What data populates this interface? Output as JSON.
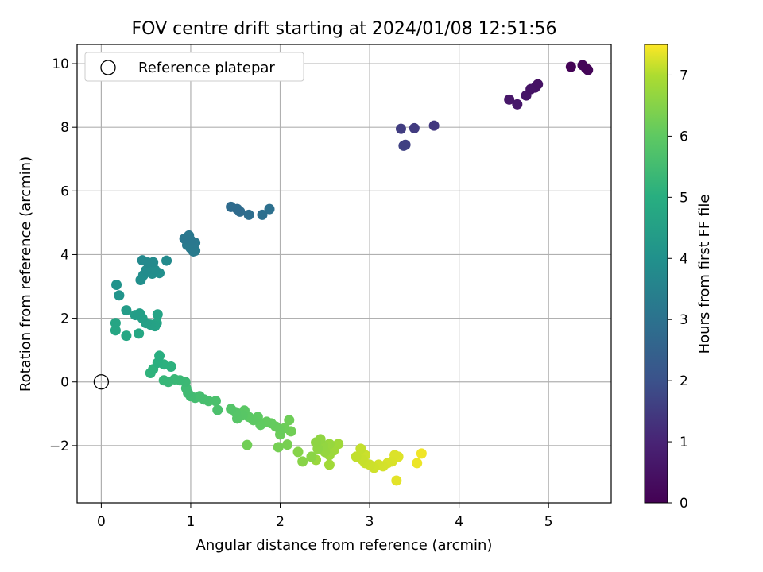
{
  "chart_data": {
    "type": "scatter",
    "title": "FOV centre drift starting at 2024/01/08 12:51:56",
    "xlabel": "Angular distance from reference (arcmin)",
    "ylabel": "Rotation from reference (arcmin)",
    "xlim": [
      -0.27,
      5.7
    ],
    "ylim": [
      -3.8,
      10.6
    ],
    "xticks": [
      0,
      1,
      2,
      3,
      4,
      5
    ],
    "yticks": [
      -2,
      0,
      2,
      4,
      6,
      8,
      10
    ],
    "grid": true,
    "legend": {
      "location": "upper-left",
      "entries": [
        "Reference platepar"
      ]
    },
    "reference_point": {
      "x": 0,
      "y": 0,
      "marker": "open-circle"
    },
    "colorbar": {
      "label": "Hours from first FF file",
      "colormap": "viridis",
      "range": [
        0,
        7.5
      ],
      "ticks": [
        0,
        1,
        2,
        3,
        4,
        5,
        6,
        7
      ]
    },
    "points": [
      {
        "x": 5.25,
        "y": 9.9,
        "h": 0.05
      },
      {
        "x": 5.38,
        "y": 9.95,
        "h": 0.1
      },
      {
        "x": 5.42,
        "y": 9.85,
        "h": 0.12
      },
      {
        "x": 5.44,
        "y": 9.8,
        "h": 0.15
      },
      {
        "x": 4.88,
        "y": 9.35,
        "h": 0.45
      },
      {
        "x": 4.85,
        "y": 9.25,
        "h": 0.5
      },
      {
        "x": 4.8,
        "y": 9.2,
        "h": 0.52
      },
      {
        "x": 4.75,
        "y": 9.0,
        "h": 0.55
      },
      {
        "x": 4.56,
        "y": 8.87,
        "h": 0.6
      },
      {
        "x": 4.65,
        "y": 8.72,
        "h": 0.62
      },
      {
        "x": 3.72,
        "y": 8.05,
        "h": 1.35
      },
      {
        "x": 3.5,
        "y": 7.97,
        "h": 1.4
      },
      {
        "x": 3.35,
        "y": 7.95,
        "h": 1.45
      },
      {
        "x": 3.4,
        "y": 7.45,
        "h": 1.5
      },
      {
        "x": 3.38,
        "y": 7.42,
        "h": 1.55
      },
      {
        "x": 1.45,
        "y": 5.5,
        "h": 2.6
      },
      {
        "x": 1.52,
        "y": 5.43,
        "h": 2.62
      },
      {
        "x": 1.55,
        "y": 5.35,
        "h": 2.65
      },
      {
        "x": 1.65,
        "y": 5.25,
        "h": 2.7
      },
      {
        "x": 1.8,
        "y": 5.25,
        "h": 2.72
      },
      {
        "x": 1.88,
        "y": 5.43,
        "h": 2.75
      },
      {
        "x": 0.93,
        "y": 4.5,
        "h": 2.95
      },
      {
        "x": 0.98,
        "y": 4.6,
        "h": 3.0
      },
      {
        "x": 1.0,
        "y": 4.45,
        "h": 3.0
      },
      {
        "x": 1.05,
        "y": 4.37,
        "h": 3.02
      },
      {
        "x": 0.96,
        "y": 4.3,
        "h": 3.05
      },
      {
        "x": 1.0,
        "y": 4.2,
        "h": 3.05
      },
      {
        "x": 1.03,
        "y": 4.1,
        "h": 3.08
      },
      {
        "x": 1.05,
        "y": 4.12,
        "h": 3.1
      },
      {
        "x": 0.46,
        "y": 3.82,
        "h": 3.5
      },
      {
        "x": 0.52,
        "y": 3.75,
        "h": 3.52
      },
      {
        "x": 0.58,
        "y": 3.76,
        "h": 3.55
      },
      {
        "x": 0.73,
        "y": 3.81,
        "h": 3.55
      },
      {
        "x": 0.5,
        "y": 3.5,
        "h": 3.6
      },
      {
        "x": 0.55,
        "y": 3.55,
        "h": 3.62
      },
      {
        "x": 0.6,
        "y": 3.52,
        "h": 3.63
      },
      {
        "x": 0.47,
        "y": 3.35,
        "h": 3.65
      },
      {
        "x": 0.57,
        "y": 3.4,
        "h": 3.66
      },
      {
        "x": 0.65,
        "y": 3.42,
        "h": 3.68
      },
      {
        "x": 0.44,
        "y": 3.2,
        "h": 3.7
      },
      {
        "x": 0.17,
        "y": 3.05,
        "h": 3.8
      },
      {
        "x": 0.2,
        "y": 2.72,
        "h": 3.85
      },
      {
        "x": 0.28,
        "y": 2.25,
        "h": 4.1
      },
      {
        "x": 0.38,
        "y": 2.1,
        "h": 4.15
      },
      {
        "x": 0.43,
        "y": 2.15,
        "h": 4.18
      },
      {
        "x": 0.46,
        "y": 2.0,
        "h": 4.2
      },
      {
        "x": 0.5,
        "y": 1.85,
        "h": 4.25
      },
      {
        "x": 0.55,
        "y": 1.8,
        "h": 4.28
      },
      {
        "x": 0.6,
        "y": 1.75,
        "h": 4.3
      },
      {
        "x": 0.63,
        "y": 2.12,
        "h": 4.32
      },
      {
        "x": 0.62,
        "y": 1.85,
        "h": 4.35
      },
      {
        "x": 0.16,
        "y": 1.85,
        "h": 4.4
      },
      {
        "x": 0.16,
        "y": 1.62,
        "h": 4.42
      },
      {
        "x": 0.28,
        "y": 1.45,
        "h": 4.45
      },
      {
        "x": 0.42,
        "y": 1.52,
        "h": 4.45
      },
      {
        "x": 0.65,
        "y": 0.82,
        "h": 4.7
      },
      {
        "x": 0.63,
        "y": 0.6,
        "h": 4.72
      },
      {
        "x": 0.7,
        "y": 0.55,
        "h": 4.75
      },
      {
        "x": 0.78,
        "y": 0.48,
        "h": 4.78
      },
      {
        "x": 0.58,
        "y": 0.4,
        "h": 4.8
      },
      {
        "x": 0.55,
        "y": 0.28,
        "h": 4.82
      },
      {
        "x": 0.7,
        "y": 0.05,
        "h": 4.95
      },
      {
        "x": 0.75,
        "y": 0.0,
        "h": 4.98
      },
      {
        "x": 0.82,
        "y": 0.08,
        "h": 5.0
      },
      {
        "x": 0.88,
        "y": 0.05,
        "h": 5.02
      },
      {
        "x": 0.94,
        "y": 0.0,
        "h": 5.05
      },
      {
        "x": 0.95,
        "y": -0.2,
        "h": 5.1
      },
      {
        "x": 0.97,
        "y": -0.35,
        "h": 5.12
      },
      {
        "x": 1.0,
        "y": -0.45,
        "h": 5.15
      },
      {
        "x": 1.05,
        "y": -0.5,
        "h": 5.2
      },
      {
        "x": 1.1,
        "y": -0.45,
        "h": 5.22
      },
      {
        "x": 1.15,
        "y": -0.55,
        "h": 5.25
      },
      {
        "x": 1.2,
        "y": -0.6,
        "h": 5.28
      },
      {
        "x": 1.28,
        "y": -0.6,
        "h": 5.3
      },
      {
        "x": 1.3,
        "y": -0.88,
        "h": 5.32
      },
      {
        "x": 1.45,
        "y": -0.85,
        "h": 5.45
      },
      {
        "x": 1.5,
        "y": -0.95,
        "h": 5.48
      },
      {
        "x": 1.52,
        "y": -1.15,
        "h": 5.5
      },
      {
        "x": 1.58,
        "y": -1.05,
        "h": 5.52
      },
      {
        "x": 1.6,
        "y": -0.9,
        "h": 5.55
      },
      {
        "x": 1.65,
        "y": -1.1,
        "h": 5.58
      },
      {
        "x": 1.7,
        "y": -1.2,
        "h": 5.6
      },
      {
        "x": 1.75,
        "y": -1.1,
        "h": 5.62
      },
      {
        "x": 1.78,
        "y": -1.35,
        "h": 5.65
      },
      {
        "x": 1.85,
        "y": -1.25,
        "h": 5.68
      },
      {
        "x": 1.9,
        "y": -1.3,
        "h": 5.7
      },
      {
        "x": 1.95,
        "y": -1.4,
        "h": 5.72
      },
      {
        "x": 2.0,
        "y": -1.5,
        "h": 5.75
      },
      {
        "x": 2.0,
        "y": -1.65,
        "h": 5.78
      },
      {
        "x": 2.05,
        "y": -1.45,
        "h": 5.8
      },
      {
        "x": 2.1,
        "y": -1.2,
        "h": 5.82
      },
      {
        "x": 2.12,
        "y": -1.55,
        "h": 5.85
      },
      {
        "x": 1.63,
        "y": -1.98,
        "h": 5.85
      },
      {
        "x": 1.98,
        "y": -2.05,
        "h": 5.9
      },
      {
        "x": 2.08,
        "y": -1.97,
        "h": 5.92
      },
      {
        "x": 2.2,
        "y": -2.2,
        "h": 6.1
      },
      {
        "x": 2.25,
        "y": -2.5,
        "h": 6.12
      },
      {
        "x": 2.35,
        "y": -2.35,
        "h": 6.15
      },
      {
        "x": 2.4,
        "y": -1.9,
        "h": 6.18
      },
      {
        "x": 2.42,
        "y": -2.1,
        "h": 6.2
      },
      {
        "x": 2.45,
        "y": -1.8,
        "h": 6.22
      },
      {
        "x": 2.48,
        "y": -2.0,
        "h": 6.25
      },
      {
        "x": 2.5,
        "y": -2.2,
        "h": 6.28
      },
      {
        "x": 2.55,
        "y": -1.95,
        "h": 6.3
      },
      {
        "x": 2.4,
        "y": -2.45,
        "h": 6.32
      },
      {
        "x": 2.55,
        "y": -2.3,
        "h": 6.35
      },
      {
        "x": 2.6,
        "y": -2.15,
        "h": 6.38
      },
      {
        "x": 2.65,
        "y": -1.95,
        "h": 6.4
      },
      {
        "x": 2.55,
        "y": -2.6,
        "h": 6.42
      },
      {
        "x": 2.85,
        "y": -2.35,
        "h": 6.8
      },
      {
        "x": 2.9,
        "y": -2.1,
        "h": 6.82
      },
      {
        "x": 2.92,
        "y": -2.45,
        "h": 6.85
      },
      {
        "x": 2.95,
        "y": -2.55,
        "h": 6.88
      },
      {
        "x": 2.95,
        "y": -2.3,
        "h": 6.9
      },
      {
        "x": 3.0,
        "y": -2.6,
        "h": 6.92
      },
      {
        "x": 3.05,
        "y": -2.7,
        "h": 6.95
      },
      {
        "x": 3.1,
        "y": -2.6,
        "h": 7.0
      },
      {
        "x": 3.15,
        "y": -2.65,
        "h": 7.02
      },
      {
        "x": 3.2,
        "y": -2.55,
        "h": 7.05
      },
      {
        "x": 3.25,
        "y": -2.5,
        "h": 7.08
      },
      {
        "x": 3.28,
        "y": -2.3,
        "h": 7.1
      },
      {
        "x": 3.32,
        "y": -2.35,
        "h": 7.12
      },
      {
        "x": 3.3,
        "y": -3.1,
        "h": 7.2
      },
      {
        "x": 3.53,
        "y": -2.55,
        "h": 7.3
      },
      {
        "x": 3.58,
        "y": -2.25,
        "h": 7.35
      }
    ]
  }
}
